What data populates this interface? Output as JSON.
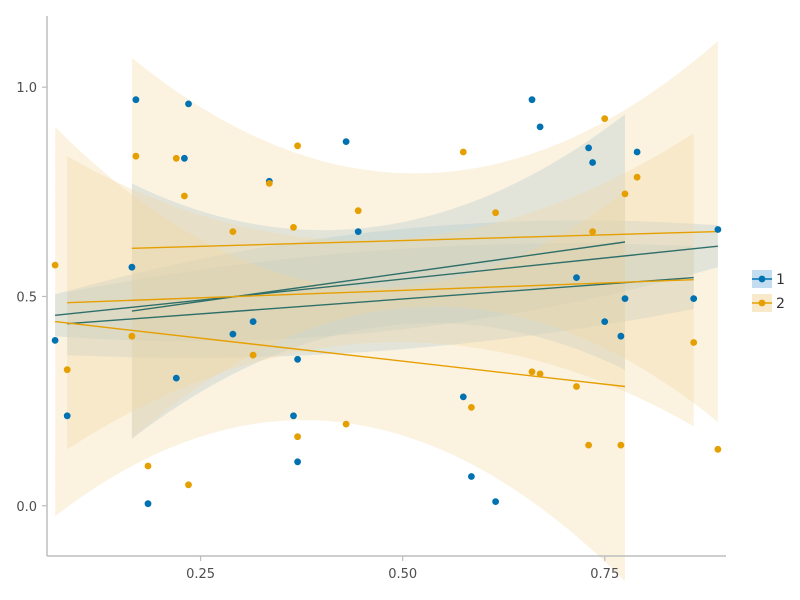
{
  "chart_data": {
    "type": "scatter",
    "title": "",
    "xlabel": "",
    "ylabel": "",
    "xlim": [
      0.06,
      0.9
    ],
    "ylim": [
      -0.12,
      1.17
    ],
    "x_ticks": [
      0.25,
      0.5,
      0.75
    ],
    "x_tick_labels": [
      "0.25",
      "0.50",
      "0.75"
    ],
    "y_ticks": [
      0.0,
      0.5,
      1.0
    ],
    "y_tick_labels": [
      "0.0",
      "0.5",
      "1.0"
    ],
    "grid": false,
    "legend": {
      "placement": "right",
      "entries": [
        "1",
        "2"
      ]
    },
    "series": [
      {
        "name": "1",
        "color": "#0072B2",
        "band_fill": "#8fc1e3",
        "line_color": "#2f6f6a",
        "points": [
          [
            0.07,
            0.395
          ],
          [
            0.085,
            0.215
          ],
          [
            0.165,
            0.57
          ],
          [
            0.17,
            0.97
          ],
          [
            0.185,
            0.005
          ],
          [
            0.22,
            0.305
          ],
          [
            0.23,
            0.83
          ],
          [
            0.235,
            0.96
          ],
          [
            0.29,
            0.41
          ],
          [
            0.315,
            0.44
          ],
          [
            0.335,
            0.775
          ],
          [
            0.365,
            0.215
          ],
          [
            0.37,
            0.105
          ],
          [
            0.37,
            0.35
          ],
          [
            0.43,
            0.87
          ],
          [
            0.445,
            0.655
          ],
          [
            0.575,
            0.26
          ],
          [
            0.585,
            0.07
          ],
          [
            0.615,
            0.01
          ],
          [
            0.66,
            0.97
          ],
          [
            0.67,
            0.905
          ],
          [
            0.715,
            0.545
          ],
          [
            0.73,
            0.855
          ],
          [
            0.735,
            0.82
          ],
          [
            0.75,
            0.44
          ],
          [
            0.77,
            0.405
          ],
          [
            0.775,
            0.495
          ],
          [
            0.79,
            0.845
          ],
          [
            0.86,
            0.495
          ],
          [
            0.89,
            0.66
          ]
        ],
        "fits": [
          {
            "x": [
              0.07,
              0.89
            ],
            "y": [
              0.455,
              0.62
            ],
            "lower_start": [
              0.86,
              -0.05
            ],
            "upper_start": [
              0.97,
              0.05
            ]
          },
          {
            "x": [
              0.085,
              0.86
            ],
            "y": [
              0.435,
              0.545
            ],
            "lower_start": [
              0.69,
              -0.03
            ],
            "upper_start": [
              0.93,
              0.12
            ]
          },
          {
            "x": [
              0.165,
              0.775
            ],
            "y": [
              0.465,
              0.63
            ],
            "lower_start": [
              0.15,
              0.37
            ],
            "upper_start": [
              0.78,
              0.98
            ]
          }
        ]
      },
      {
        "name": "2",
        "color": "#E69F00",
        "band_fill": "#f3d79e",
        "line_color": "#e69f00",
        "points": [
          [
            0.07,
            0.575
          ],
          [
            0.085,
            0.325
          ],
          [
            0.165,
            0.405
          ],
          [
            0.17,
            0.835
          ],
          [
            0.185,
            0.095
          ],
          [
            0.22,
            0.83
          ],
          [
            0.23,
            0.74
          ],
          [
            0.235,
            0.05
          ],
          [
            0.29,
            0.655
          ],
          [
            0.315,
            0.36
          ],
          [
            0.335,
            0.77
          ],
          [
            0.365,
            0.665
          ],
          [
            0.37,
            0.86
          ],
          [
            0.37,
            0.165
          ],
          [
            0.43,
            0.195
          ],
          [
            0.445,
            0.705
          ],
          [
            0.575,
            0.845
          ],
          [
            0.585,
            0.235
          ],
          [
            0.615,
            0.7
          ],
          [
            0.66,
            0.32
          ],
          [
            0.67,
            0.315
          ],
          [
            0.715,
            0.285
          ],
          [
            0.73,
            0.145
          ],
          [
            0.735,
            0.655
          ],
          [
            0.75,
            0.925
          ],
          [
            0.77,
            0.145
          ],
          [
            0.775,
            0.745
          ],
          [
            0.79,
            0.785
          ],
          [
            0.86,
            0.39
          ],
          [
            0.89,
            0.135
          ]
        ],
        "fits": [
          {
            "x": [
              0.085,
              0.86
            ],
            "y": [
              0.485,
              0.54
            ],
            "lower_start": [
              0.09,
              0.19
            ],
            "upper_start": [
              0.89,
              0.89
            ]
          },
          {
            "x": [
              0.07,
              0.775
            ],
            "y": [
              0.44,
              0.285
            ],
            "lower_start": [
              0.09,
              0.05
            ],
            "upper_start": [
              0.79,
              0.98
            ]
          },
          {
            "x": [
              0.165,
              0.89
            ],
            "y": [
              0.615,
              0.655
            ],
            "lower_start": [
              0.28,
              0.19
            ],
            "upper_start": [
              0.95,
              1.1
            ]
          }
        ]
      }
    ]
  }
}
